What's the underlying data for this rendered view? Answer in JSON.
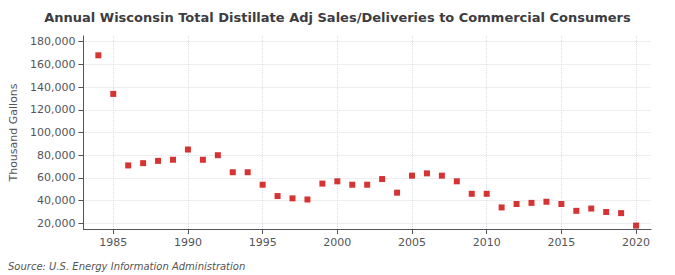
{
  "chart_data": {
    "type": "scatter",
    "title": "Annual Wisconsin Total Distillate Adj Sales/Deliveries to Commercial Consumers",
    "ylabel": "Thousand Gallons",
    "source": "Source: U.S. Energy Information Administration",
    "x": [
      1984,
      1985,
      1986,
      1987,
      1988,
      1989,
      1990,
      1991,
      1992,
      1993,
      1994,
      1995,
      1996,
      1997,
      1998,
      1999,
      2000,
      2001,
      2002,
      2003,
      2004,
      2005,
      2006,
      2007,
      2008,
      2009,
      2010,
      2011,
      2012,
      2013,
      2014,
      2015,
      2016,
      2017,
      2018,
      2019,
      2020
    ],
    "values": [
      168000,
      134000,
      71000,
      73000,
      75000,
      76000,
      85000,
      76000,
      80000,
      65000,
      65000,
      54000,
      44000,
      42000,
      41000,
      55000,
      57000,
      54000,
      54000,
      59000,
      47000,
      62000,
      64000,
      62000,
      57000,
      46000,
      46000,
      34000,
      37000,
      38000,
      39000,
      37000,
      31000,
      33000,
      30000,
      29000,
      18000
    ],
    "color": "#cc0000",
    "marker": "square",
    "xlim": [
      1983.0,
      2021.0
    ],
    "xticks": [
      1985,
      1990,
      1995,
      2000,
      2005,
      2010,
      2015,
      2020
    ],
    "ylim": [
      15000,
      185000
    ],
    "yticks": [
      {
        "value": 20000,
        "label": "20,000"
      },
      {
        "value": 40000,
        "label": "40,000"
      },
      {
        "value": 60000,
        "label": "60,000"
      },
      {
        "value": 80000,
        "label": "80,000"
      },
      {
        "value": 100000,
        "label": "100,000"
      },
      {
        "value": 120000,
        "label": "120,000"
      },
      {
        "value": 140000,
        "label": "140,000"
      },
      {
        "value": 160000,
        "label": "160,000"
      },
      {
        "value": 180000,
        "label": "180,000"
      }
    ],
    "grid": true
  }
}
